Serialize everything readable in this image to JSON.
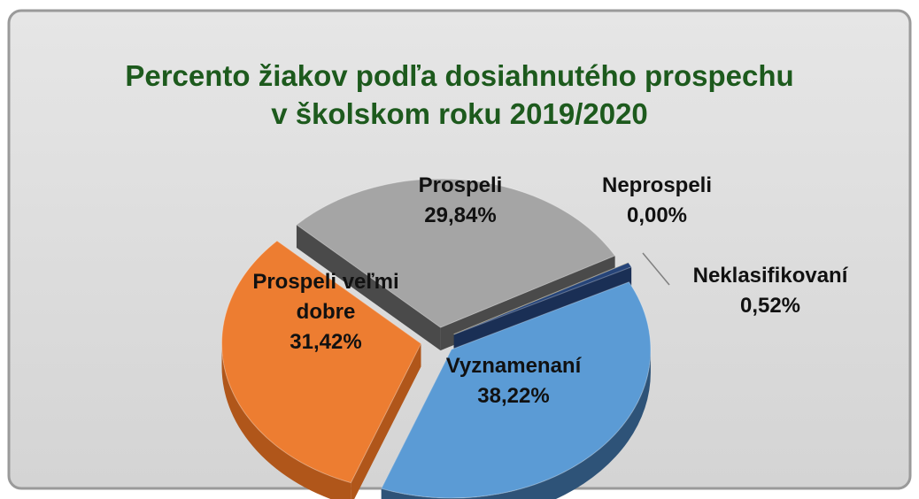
{
  "chart_data": {
    "type": "pie",
    "title": [
      "Percento žiakov podľa dosiahnutého prospechu",
      "v školskom roku 2019/2020"
    ],
    "categories": [
      "Vyznamenaní",
      "Prospeli veľmi dobre",
      "Prospeli",
      "Neprospeli",
      "Neklasifikovaní"
    ],
    "values": [
      38.22,
      31.42,
      29.84,
      0.0,
      0.52
    ],
    "value_labels": [
      "38,22%",
      "31,42%",
      "29,84%",
      "0,00%",
      "0,52%"
    ],
    "colors": [
      "#5b9bd5",
      "#ed7d31",
      "#a5a5a5",
      "#ffc000",
      "#264478"
    ],
    "side_colors": [
      "#2e5378",
      "#b0561a",
      "#4a4a4a",
      "#a07800",
      "#1a2f55"
    ]
  }
}
